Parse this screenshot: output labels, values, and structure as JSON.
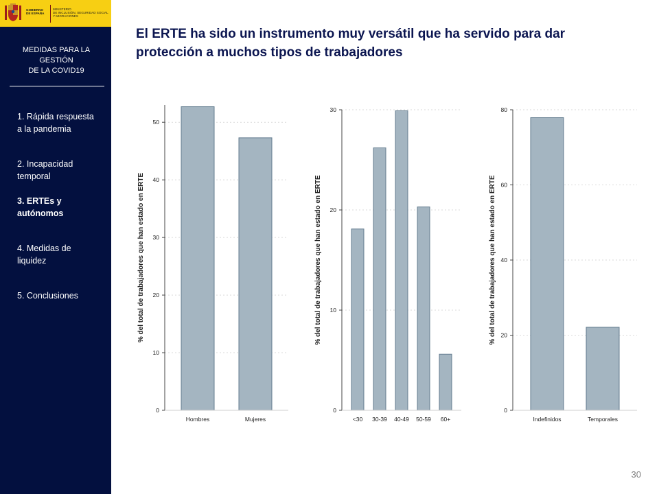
{
  "logo": {
    "gobierno": "GOBIERNO\nDE ESPAÑA",
    "ministerio": "MINISTERIO\nDE INCLUSIÓN, SEGURIDAD SOCIAL\nY MIGRACIONES"
  },
  "sidebar": {
    "heading": "MEDIDAS  PARA LA\nGESTIÓN\nDE LA COVID19",
    "items": [
      {
        "label": "1. Rápida respuesta\na la pandemia",
        "active": false
      },
      {
        "label": "2. Incapacidad\ntemporal",
        "active": false
      },
      {
        "label": "3. ERTEs y\nautónomos",
        "active": true
      },
      {
        "label": "4. Medidas de\nliquidez",
        "active": false
      },
      {
        "label": "5. Conclusiones",
        "active": false
      }
    ]
  },
  "title": "El ERTE ha sido un instrumento muy versátil que ha servido para dar protección a muchos tipos de trabajadores",
  "page_number": "30",
  "colors": {
    "sidebar": "#03103f",
    "logo_bg": "#f7cf13",
    "bar_fill": "#a4b5c1",
    "bar_stroke": "#637c8f",
    "title": "#0b1550"
  },
  "chart_data": [
    {
      "type": "bar",
      "categories": [
        "Hombres",
        "Mujeres"
      ],
      "values": [
        52.7,
        47.3
      ],
      "ylabel": "% del total de trabajadores que han estado en ERTE",
      "ylim": [
        0,
        53
      ],
      "yticks": [
        0,
        10,
        20,
        30,
        40,
        50
      ],
      "grid": true
    },
    {
      "type": "bar",
      "categories": [
        "<30",
        "30-39",
        "40-49",
        "50-59",
        "60+"
      ],
      "values": [
        18.1,
        26.2,
        29.9,
        20.3,
        5.6
      ],
      "ylabel": "% del total de trabajadores que han estado en ERTE",
      "ylim": [
        0,
        30
      ],
      "yticks": [
        0,
        10,
        20,
        30
      ],
      "grid": true
    },
    {
      "type": "bar",
      "categories": [
        "Indefinidos",
        "Temporales"
      ],
      "values": [
        77.9,
        22.1
      ],
      "ylabel": "% del total de trabajadores que han estado en ERTE",
      "ylim": [
        0,
        80
      ],
      "yticks": [
        0,
        20,
        40,
        60,
        80
      ],
      "grid": true
    }
  ]
}
